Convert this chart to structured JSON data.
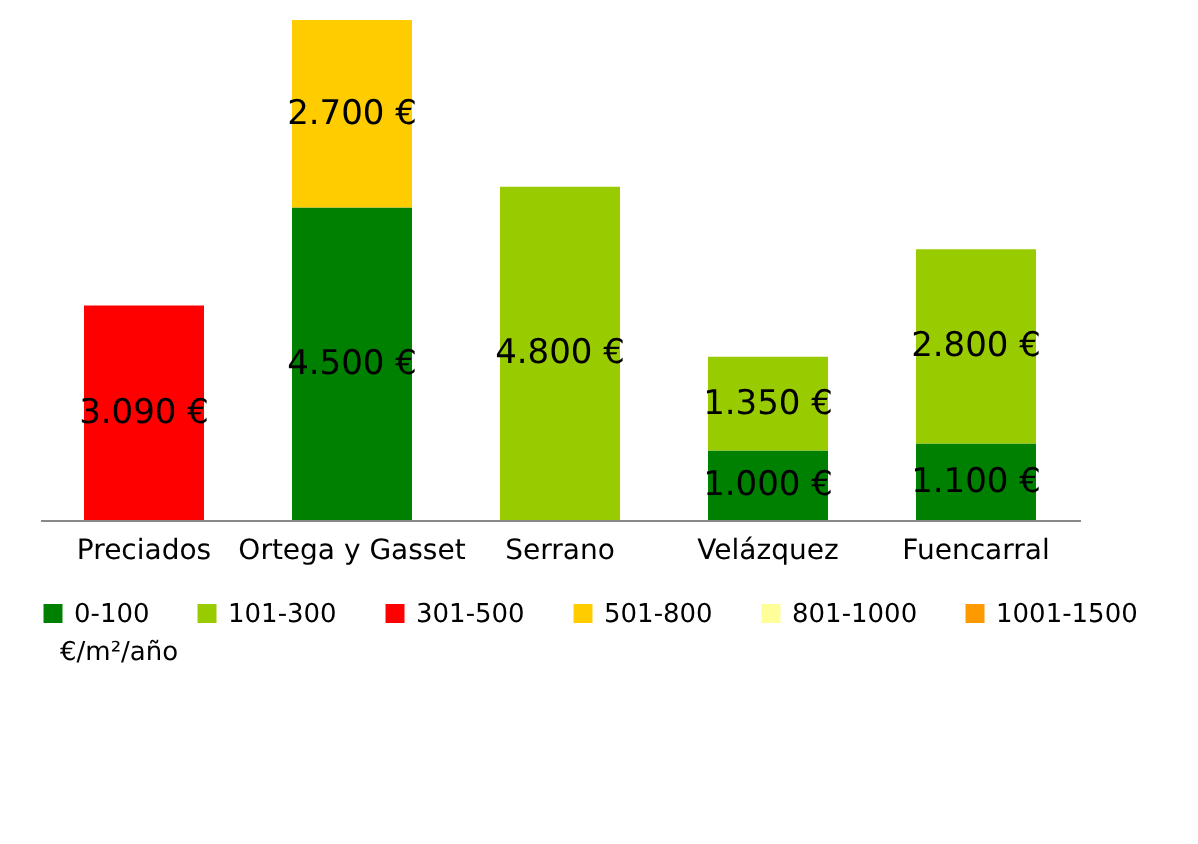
{
  "chart_data": {
    "type": "bar",
    "stacked": true,
    "categories": [
      "Preciados",
      "Ortega y Gasset",
      "Serrano",
      "Velázquez",
      "Fuencarral"
    ],
    "series": [
      {
        "name": "0-100",
        "color": "#008000",
        "values": [
          null,
          4500,
          null,
          1000,
          1100
        ],
        "value_labels": [
          null,
          "4.500 €",
          null,
          "1.000 €",
          "1.100 €"
        ]
      },
      {
        "name": "101-300",
        "color": "#99cc00",
        "values": [
          null,
          null,
          4800,
          1350,
          2800
        ],
        "value_labels": [
          null,
          null,
          "4.800 €",
          "1.350 €",
          "2.800 €"
        ]
      },
      {
        "name": "301-500",
        "color": "#ff0000",
        "values": [
          3090,
          null,
          null,
          null,
          null
        ],
        "value_labels": [
          "3.090 €",
          null,
          null,
          null,
          null
        ]
      },
      {
        "name": "501-800",
        "color": "#ffcc00",
        "values": [
          null,
          2700,
          null,
          null,
          null
        ],
        "value_labels": [
          null,
          "2.700 €",
          null,
          null,
          null
        ]
      },
      {
        "name": "801-1000",
        "color": "#ffff99",
        "values": [
          null,
          null,
          null,
          null,
          null
        ]
      },
      {
        "name": "1001-1500",
        "color": "#ff9900",
        "values": [
          null,
          null,
          null,
          null,
          null
        ]
      }
    ],
    "legend": "bottom",
    "annotations": [
      "€/m²/año"
    ]
  }
}
